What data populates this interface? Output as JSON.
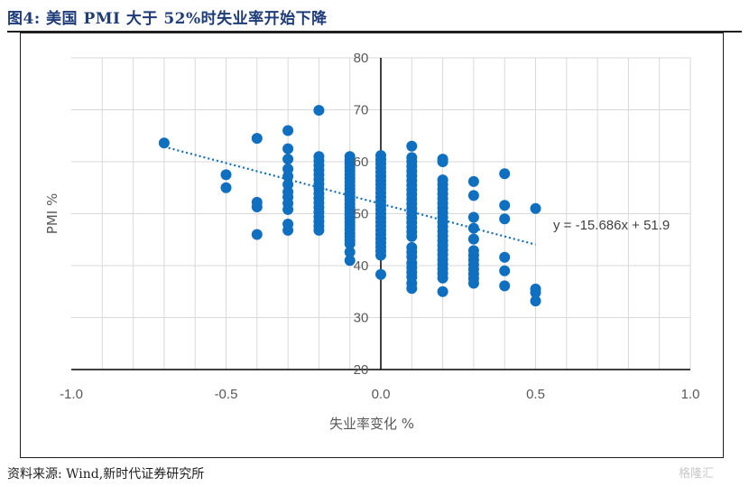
{
  "figure": {
    "title": "图4:  美国 PMI 大于 52%时失业率开始下降",
    "source": "资料来源:  Wind,新时代证券研究所",
    "watermark": "格隆汇"
  },
  "colors": {
    "marker": "#0f6fc0",
    "trend": "#0f6fc0",
    "axis": "#000000",
    "grid": "#d9d9d9"
  },
  "chart_data": {
    "type": "scatter",
    "xlabel": "失业率变化 %",
    "ylabel": "PMI %",
    "xlim": [
      -1.0,
      1.0
    ],
    "ylim": [
      20,
      80
    ],
    "xticks": [
      "-1.0",
      "-0.5",
      "0.0",
      "0.5",
      "1.0"
    ],
    "yticks": [
      "20",
      "30",
      "40",
      "50",
      "60",
      "70",
      "80"
    ],
    "xtick_values": [
      -1.0,
      -0.5,
      0.0,
      0.5,
      1.0
    ],
    "ytick_values": [
      20,
      30,
      40,
      50,
      60,
      70,
      80
    ],
    "grid": true,
    "trendline": {
      "slope": -15.686,
      "intercept": 51.9,
      "x_range": [
        -0.7,
        0.5
      ],
      "label": "y = -15.686x + 51.9"
    },
    "points": [
      [
        -0.7,
        63.6
      ],
      [
        -0.5,
        57.5
      ],
      [
        -0.5,
        55.0
      ],
      [
        -0.4,
        64.5
      ],
      [
        -0.4,
        52.2
      ],
      [
        -0.4,
        51.3
      ],
      [
        -0.4,
        46.0
      ],
      [
        -0.3,
        66.0
      ],
      [
        -0.3,
        62.5
      ],
      [
        -0.3,
        60.5
      ],
      [
        -0.3,
        58.6
      ],
      [
        -0.3,
        57.2
      ],
      [
        -0.3,
        55.6
      ],
      [
        -0.3,
        54.2
      ],
      [
        -0.3,
        53.2
      ],
      [
        -0.3,
        52.0
      ],
      [
        -0.3,
        50.8
      ],
      [
        -0.3,
        48.0
      ],
      [
        -0.3,
        46.8
      ],
      [
        -0.2,
        69.9
      ],
      [
        -0.2,
        61.0
      ],
      [
        -0.2,
        60.2
      ],
      [
        -0.2,
        59.3
      ],
      [
        -0.2,
        58.4
      ],
      [
        -0.2,
        57.5
      ],
      [
        -0.2,
        56.6
      ],
      [
        -0.2,
        55.7
      ],
      [
        -0.2,
        54.8
      ],
      [
        -0.2,
        53.9
      ],
      [
        -0.2,
        53.0
      ],
      [
        -0.2,
        52.1
      ],
      [
        -0.2,
        51.2
      ],
      [
        -0.2,
        50.3
      ],
      [
        -0.2,
        49.4
      ],
      [
        -0.2,
        48.5
      ],
      [
        -0.2,
        47.6
      ],
      [
        -0.2,
        46.8
      ],
      [
        -0.1,
        61.0
      ],
      [
        -0.1,
        60.3
      ],
      [
        -0.1,
        59.6
      ],
      [
        -0.1,
        58.9
      ],
      [
        -0.1,
        58.2
      ],
      [
        -0.1,
        57.5
      ],
      [
        -0.1,
        56.8
      ],
      [
        -0.1,
        56.1
      ],
      [
        -0.1,
        55.4
      ],
      [
        -0.1,
        54.7
      ],
      [
        -0.1,
        54.0
      ],
      [
        -0.1,
        53.3
      ],
      [
        -0.1,
        52.6
      ],
      [
        -0.1,
        51.9
      ],
      [
        -0.1,
        51.2
      ],
      [
        -0.1,
        50.5
      ],
      [
        -0.1,
        49.8
      ],
      [
        -0.1,
        49.1
      ],
      [
        -0.1,
        48.4
      ],
      [
        -0.1,
        47.7
      ],
      [
        -0.1,
        47.0
      ],
      [
        -0.1,
        46.3
      ],
      [
        -0.1,
        45.6
      ],
      [
        -0.1,
        44.9
      ],
      [
        -0.1,
        44.2
      ],
      [
        -0.1,
        42.6
      ],
      [
        -0.1,
        41.0
      ],
      [
        0.0,
        61.2
      ],
      [
        0.0,
        60.4
      ],
      [
        0.0,
        59.6
      ],
      [
        0.0,
        58.8
      ],
      [
        0.0,
        58.0
      ],
      [
        0.0,
        57.2
      ],
      [
        0.0,
        56.4
      ],
      [
        0.0,
        55.6
      ],
      [
        0.0,
        54.8
      ],
      [
        0.0,
        54.0
      ],
      [
        0.0,
        53.2
      ],
      [
        0.0,
        52.4
      ],
      [
        0.0,
        51.6
      ],
      [
        0.0,
        50.8
      ],
      [
        0.0,
        50.0
      ],
      [
        0.0,
        49.2
      ],
      [
        0.0,
        48.4
      ],
      [
        0.0,
        47.6
      ],
      [
        0.0,
        46.8
      ],
      [
        0.0,
        46.0
      ],
      [
        0.0,
        45.2
      ],
      [
        0.0,
        44.4
      ],
      [
        0.0,
        43.6
      ],
      [
        0.0,
        42.8
      ],
      [
        0.0,
        42.0
      ],
      [
        0.0,
        38.3
      ],
      [
        0.1,
        63.0
      ],
      [
        0.1,
        60.8
      ],
      [
        0.1,
        60.0
      ],
      [
        0.1,
        59.1
      ],
      [
        0.1,
        58.2
      ],
      [
        0.1,
        57.3
      ],
      [
        0.1,
        56.4
      ],
      [
        0.1,
        55.5
      ],
      [
        0.1,
        54.6
      ],
      [
        0.1,
        53.7
      ],
      [
        0.1,
        52.8
      ],
      [
        0.1,
        51.9
      ],
      [
        0.1,
        51.0
      ],
      [
        0.1,
        50.1
      ],
      [
        0.1,
        49.2
      ],
      [
        0.1,
        48.3
      ],
      [
        0.1,
        47.4
      ],
      [
        0.1,
        46.5
      ],
      [
        0.1,
        45.6
      ],
      [
        0.1,
        43.5
      ],
      [
        0.1,
        42.6
      ],
      [
        0.1,
        41.7
      ],
      [
        0.1,
        40.5
      ],
      [
        0.1,
        39.6
      ],
      [
        0.1,
        38.7
      ],
      [
        0.1,
        37.8
      ],
      [
        0.1,
        36.6
      ],
      [
        0.1,
        35.6
      ],
      [
        0.2,
        60.5
      ],
      [
        0.2,
        60.0
      ],
      [
        0.2,
        56.5
      ],
      [
        0.2,
        55.6
      ],
      [
        0.2,
        54.7
      ],
      [
        0.2,
        53.8
      ],
      [
        0.2,
        52.9
      ],
      [
        0.2,
        52.0
      ],
      [
        0.2,
        51.1
      ],
      [
        0.2,
        50.2
      ],
      [
        0.2,
        49.3
      ],
      [
        0.2,
        48.4
      ],
      [
        0.2,
        47.5
      ],
      [
        0.2,
        46.6
      ],
      [
        0.2,
        45.7
      ],
      [
        0.2,
        44.8
      ],
      [
        0.2,
        43.9
      ],
      [
        0.2,
        43.0
      ],
      [
        0.2,
        42.1
      ],
      [
        0.2,
        41.2
      ],
      [
        0.2,
        40.3
      ],
      [
        0.2,
        39.4
      ],
      [
        0.2,
        38.5
      ],
      [
        0.2,
        37.6
      ],
      [
        0.2,
        35.0
      ],
      [
        0.3,
        56.2
      ],
      [
        0.3,
        53.5
      ],
      [
        0.3,
        49.3
      ],
      [
        0.3,
        47.2
      ],
      [
        0.3,
        45.1
      ],
      [
        0.3,
        42.9
      ],
      [
        0.3,
        42.0
      ],
      [
        0.3,
        41.1
      ],
      [
        0.3,
        40.2
      ],
      [
        0.3,
        39.3
      ],
      [
        0.3,
        38.4
      ],
      [
        0.3,
        37.5
      ],
      [
        0.3,
        36.6
      ],
      [
        0.4,
        57.7
      ],
      [
        0.4,
        51.6
      ],
      [
        0.4,
        49.0
      ],
      [
        0.4,
        41.6
      ],
      [
        0.4,
        39.0
      ],
      [
        0.4,
        36.1
      ],
      [
        0.5,
        51.0
      ],
      [
        0.5,
        35.5
      ],
      [
        0.5,
        34.8
      ],
      [
        0.5,
        33.2
      ]
    ]
  }
}
